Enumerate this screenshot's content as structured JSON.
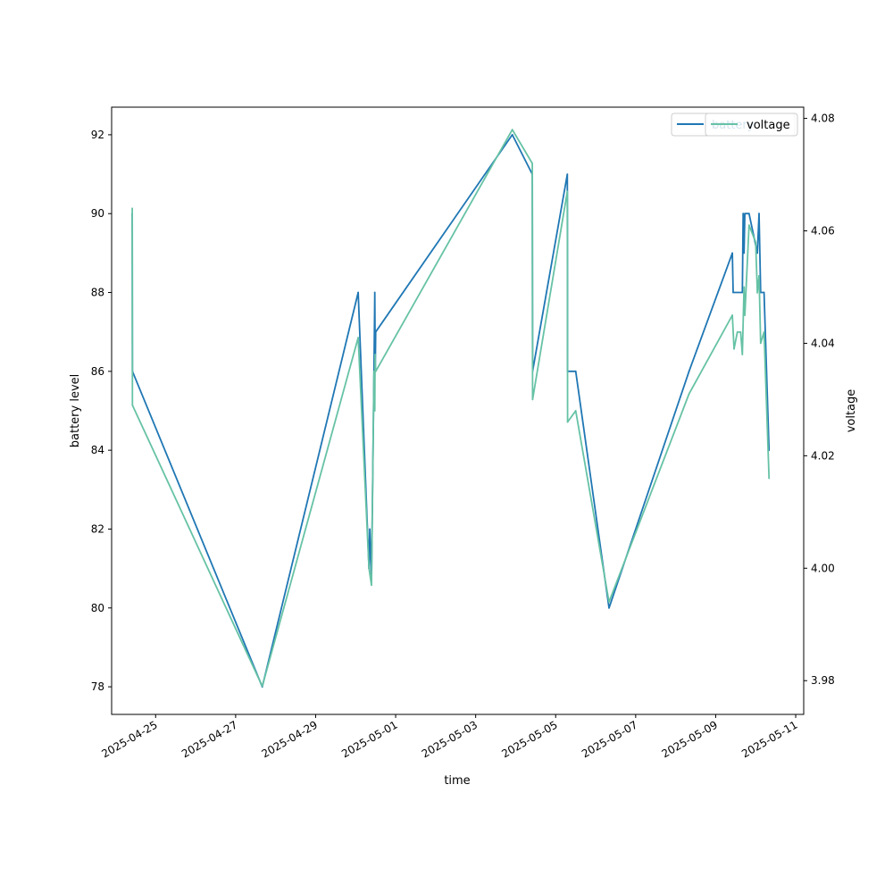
{
  "chart_data": {
    "type": "line",
    "xlabel": "time",
    "ylabel_left": "battery level",
    "ylabel_right": "voltage",
    "x_ticks": [
      "2025-04-25",
      "2025-04-27",
      "2025-04-29",
      "2025-05-01",
      "2025-05-03",
      "2025-05-05",
      "2025-05-07",
      "2025-05-09",
      "2025-05-11"
    ],
    "y_left_ticks": [
      78,
      80,
      82,
      84,
      86,
      88,
      90,
      92
    ],
    "y_right_ticks": [
      3.98,
      4.0,
      4.02,
      4.04,
      4.06,
      4.08
    ],
    "xlim": [
      "2025-04-23T21:36",
      "2025-05-11T04:48"
    ],
    "ylim_left": [
      77.3,
      92.7
    ],
    "ylim_right": [
      3.974,
      4.082
    ],
    "legend_position": "upper right (two overlapping legends)",
    "series": [
      {
        "name": "battery",
        "axis": "left",
        "color": "#1f77b4",
        "points": [
          [
            "2025-04-24T10:00",
            90
          ],
          [
            "2025-04-24T10:05",
            86
          ],
          [
            "2025-04-27T16:00",
            78
          ],
          [
            "2025-04-30T01:30",
            88
          ],
          [
            "2025-04-30T08:00",
            81
          ],
          [
            "2025-04-30T08:30",
            82
          ],
          [
            "2025-04-30T09:30",
            80.7
          ],
          [
            "2025-04-30T11:00",
            86
          ],
          [
            "2025-04-30T11:30",
            88
          ],
          [
            "2025-04-30T11:45",
            86
          ],
          [
            "2025-04-30T12:00",
            87
          ],
          [
            "2025-05-03T22:00",
            92
          ],
          [
            "2025-05-04T10:00",
            91
          ],
          [
            "2025-05-04T10:10",
            86
          ],
          [
            "2025-05-05T07:00",
            91
          ],
          [
            "2025-05-05T07:10",
            86
          ],
          [
            "2025-05-05T12:00",
            86
          ],
          [
            "2025-05-06T08:00",
            80
          ],
          [
            "2025-05-08T08:00",
            86
          ],
          [
            "2025-05-09T10:00",
            89
          ],
          [
            "2025-05-09T10:30",
            88
          ],
          [
            "2025-05-09T16:00",
            88
          ],
          [
            "2025-05-09T16:30",
            90
          ],
          [
            "2025-05-09T17:00",
            89
          ],
          [
            "2025-05-09T17:30",
            90
          ],
          [
            "2025-05-09T20:00",
            90
          ],
          [
            "2025-05-10T01:00",
            89
          ],
          [
            "2025-05-10T02:00",
            90
          ],
          [
            "2025-05-10T03:00",
            88
          ],
          [
            "2025-05-10T05:00",
            88
          ],
          [
            "2025-05-10T08:00",
            84
          ]
        ]
      },
      {
        "name": "voltage",
        "axis": "right",
        "color": "#66c2a5",
        "points": [
          [
            "2025-04-24T10:00",
            4.064
          ],
          [
            "2025-04-24T10:05",
            4.029
          ],
          [
            "2025-04-27T16:00",
            3.979
          ],
          [
            "2025-04-30T01:30",
            4.041
          ],
          [
            "2025-04-30T08:00",
            4.0
          ],
          [
            "2025-04-30T09:30",
            3.997
          ],
          [
            "2025-04-30T11:00",
            4.035
          ],
          [
            "2025-04-30T11:30",
            4.028
          ],
          [
            "2025-04-30T11:40",
            4.038
          ],
          [
            "2025-04-30T12:00",
            4.035
          ],
          [
            "2025-05-03T22:00",
            4.078
          ],
          [
            "2025-05-04T10:00",
            4.072
          ],
          [
            "2025-05-04T10:10",
            4.03
          ],
          [
            "2025-05-05T07:00",
            4.067
          ],
          [
            "2025-05-05T07:10",
            4.026
          ],
          [
            "2025-05-05T12:00",
            4.028
          ],
          [
            "2025-05-06T08:00",
            3.994
          ],
          [
            "2025-05-08T08:00",
            4.031
          ],
          [
            "2025-05-09T10:00",
            4.045
          ],
          [
            "2025-05-09T11:00",
            4.039
          ],
          [
            "2025-05-09T13:00",
            4.042
          ],
          [
            "2025-05-09T15:00",
            4.042
          ],
          [
            "2025-05-09T16:00",
            4.038
          ],
          [
            "2025-05-09T17:00",
            4.05
          ],
          [
            "2025-05-09T17:30",
            4.045
          ],
          [
            "2025-05-09T20:00",
            4.061
          ],
          [
            "2025-05-10T00:00",
            4.058
          ],
          [
            "2025-05-10T01:00",
            4.049
          ],
          [
            "2025-05-10T02:00",
            4.052
          ],
          [
            "2025-05-10T03:00",
            4.04
          ],
          [
            "2025-05-10T05:00",
            4.042
          ],
          [
            "2025-05-10T08:00",
            4.016
          ]
        ]
      }
    ],
    "legends": [
      {
        "entries": [
          {
            "label": "battery",
            "color": "#1f77b4"
          }
        ]
      },
      {
        "entries": [
          {
            "label": "voltage",
            "color": "#66c2a5"
          }
        ]
      }
    ]
  }
}
